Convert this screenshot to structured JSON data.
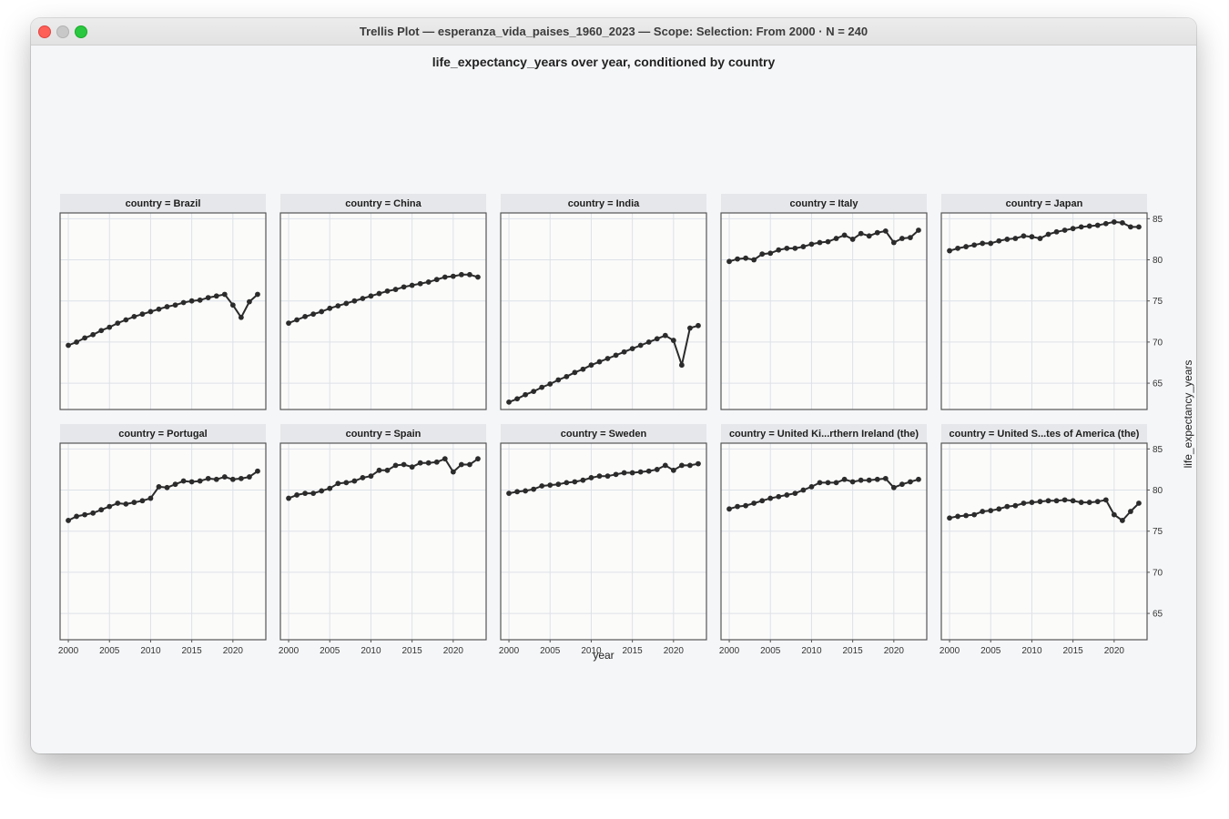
{
  "window": {
    "title": "Trellis Plot — esperanza_vida_paises_1960_2023 — Scope: Selection: From 2000 · N = 240"
  },
  "chart_data": {
    "type": "line",
    "title": "life_expectancy_years over year, conditioned by country",
    "xlabel": "year",
    "ylabel": "life_expectancy_years",
    "xlim": [
      1999,
      2024
    ],
    "ylim": [
      61.8,
      85.7
    ],
    "x_ticks": [
      2000,
      2005,
      2010,
      2015,
      2020
    ],
    "y_ticks": [
      65,
      70,
      75,
      80,
      85
    ],
    "x": [
      2000,
      2001,
      2002,
      2003,
      2004,
      2005,
      2006,
      2007,
      2008,
      2009,
      2010,
      2011,
      2012,
      2013,
      2014,
      2015,
      2016,
      2017,
      2018,
      2019,
      2020,
      2021,
      2022,
      2023
    ],
    "grid": true,
    "line_color": "#2b2b2b",
    "panels": [
      {
        "label": "country = Brazil",
        "values": [
          69.6,
          70.0,
          70.5,
          70.9,
          71.4,
          71.8,
          72.3,
          72.7,
          73.1,
          73.4,
          73.7,
          74.0,
          74.3,
          74.5,
          74.8,
          75.0,
          75.1,
          75.4,
          75.6,
          75.8,
          74.5,
          73.0,
          74.9,
          75.8
        ]
      },
      {
        "label": "country = China",
        "values": [
          72.3,
          72.7,
          73.1,
          73.4,
          73.7,
          74.1,
          74.4,
          74.7,
          75.0,
          75.3,
          75.6,
          75.9,
          76.2,
          76.4,
          76.7,
          76.9,
          77.1,
          77.3,
          77.6,
          77.9,
          78.0,
          78.2,
          78.2,
          77.9
        ]
      },
      {
        "label": "country = India",
        "values": [
          62.7,
          63.1,
          63.6,
          64.0,
          64.5,
          64.9,
          65.4,
          65.8,
          66.3,
          66.7,
          67.2,
          67.6,
          68.0,
          68.4,
          68.8,
          69.2,
          69.6,
          70.0,
          70.4,
          70.8,
          70.2,
          67.2,
          71.7,
          72.0
        ]
      },
      {
        "label": "country = Italy",
        "values": [
          79.8,
          80.1,
          80.2,
          80.0,
          80.7,
          80.8,
          81.2,
          81.4,
          81.4,
          81.6,
          81.9,
          82.1,
          82.2,
          82.6,
          83.0,
          82.5,
          83.2,
          82.9,
          83.3,
          83.5,
          82.1,
          82.6,
          82.7,
          83.6
        ]
      },
      {
        "label": "country = Japan",
        "values": [
          81.1,
          81.4,
          81.6,
          81.8,
          82.0,
          82.0,
          82.3,
          82.5,
          82.6,
          82.9,
          82.8,
          82.6,
          83.1,
          83.4,
          83.6,
          83.8,
          84.0,
          84.1,
          84.2,
          84.4,
          84.6,
          84.5,
          84.0,
          84.0
        ]
      },
      {
        "label": "country = Portugal",
        "values": [
          76.3,
          76.8,
          77.0,
          77.2,
          77.6,
          78.0,
          78.4,
          78.3,
          78.5,
          78.7,
          79.0,
          80.4,
          80.3,
          80.7,
          81.1,
          81.0,
          81.1,
          81.4,
          81.3,
          81.6,
          81.3,
          81.4,
          81.6,
          82.3
        ]
      },
      {
        "label": "country = Spain",
        "values": [
          79.0,
          79.4,
          79.6,
          79.6,
          79.9,
          80.2,
          80.8,
          80.9,
          81.1,
          81.5,
          81.7,
          82.4,
          82.4,
          83.0,
          83.1,
          82.8,
          83.3,
          83.3,
          83.4,
          83.8,
          82.2,
          83.1,
          83.1,
          83.8
        ]
      },
      {
        "label": "country = Sweden",
        "values": [
          79.6,
          79.8,
          79.9,
          80.1,
          80.5,
          80.6,
          80.7,
          80.9,
          81.0,
          81.2,
          81.5,
          81.7,
          81.7,
          81.9,
          82.1,
          82.1,
          82.2,
          82.3,
          82.5,
          83.0,
          82.4,
          83.0,
          83.0,
          83.2
        ]
      },
      {
        "label": "country = United Ki...rthern Ireland (the)",
        "values": [
          77.7,
          78.0,
          78.1,
          78.4,
          78.7,
          79.0,
          79.2,
          79.4,
          79.6,
          80.0,
          80.4,
          80.9,
          80.9,
          80.9,
          81.3,
          81.0,
          81.2,
          81.2,
          81.3,
          81.4,
          80.3,
          80.7,
          81.0,
          81.3
        ]
      },
      {
        "label": "country = United S...tes of America (the)",
        "values": [
          76.6,
          76.8,
          76.9,
          77.0,
          77.4,
          77.5,
          77.7,
          78.0,
          78.1,
          78.4,
          78.5,
          78.6,
          78.7,
          78.7,
          78.8,
          78.7,
          78.5,
          78.5,
          78.6,
          78.8,
          77.0,
          76.3,
          77.4,
          78.4
        ]
      }
    ]
  }
}
